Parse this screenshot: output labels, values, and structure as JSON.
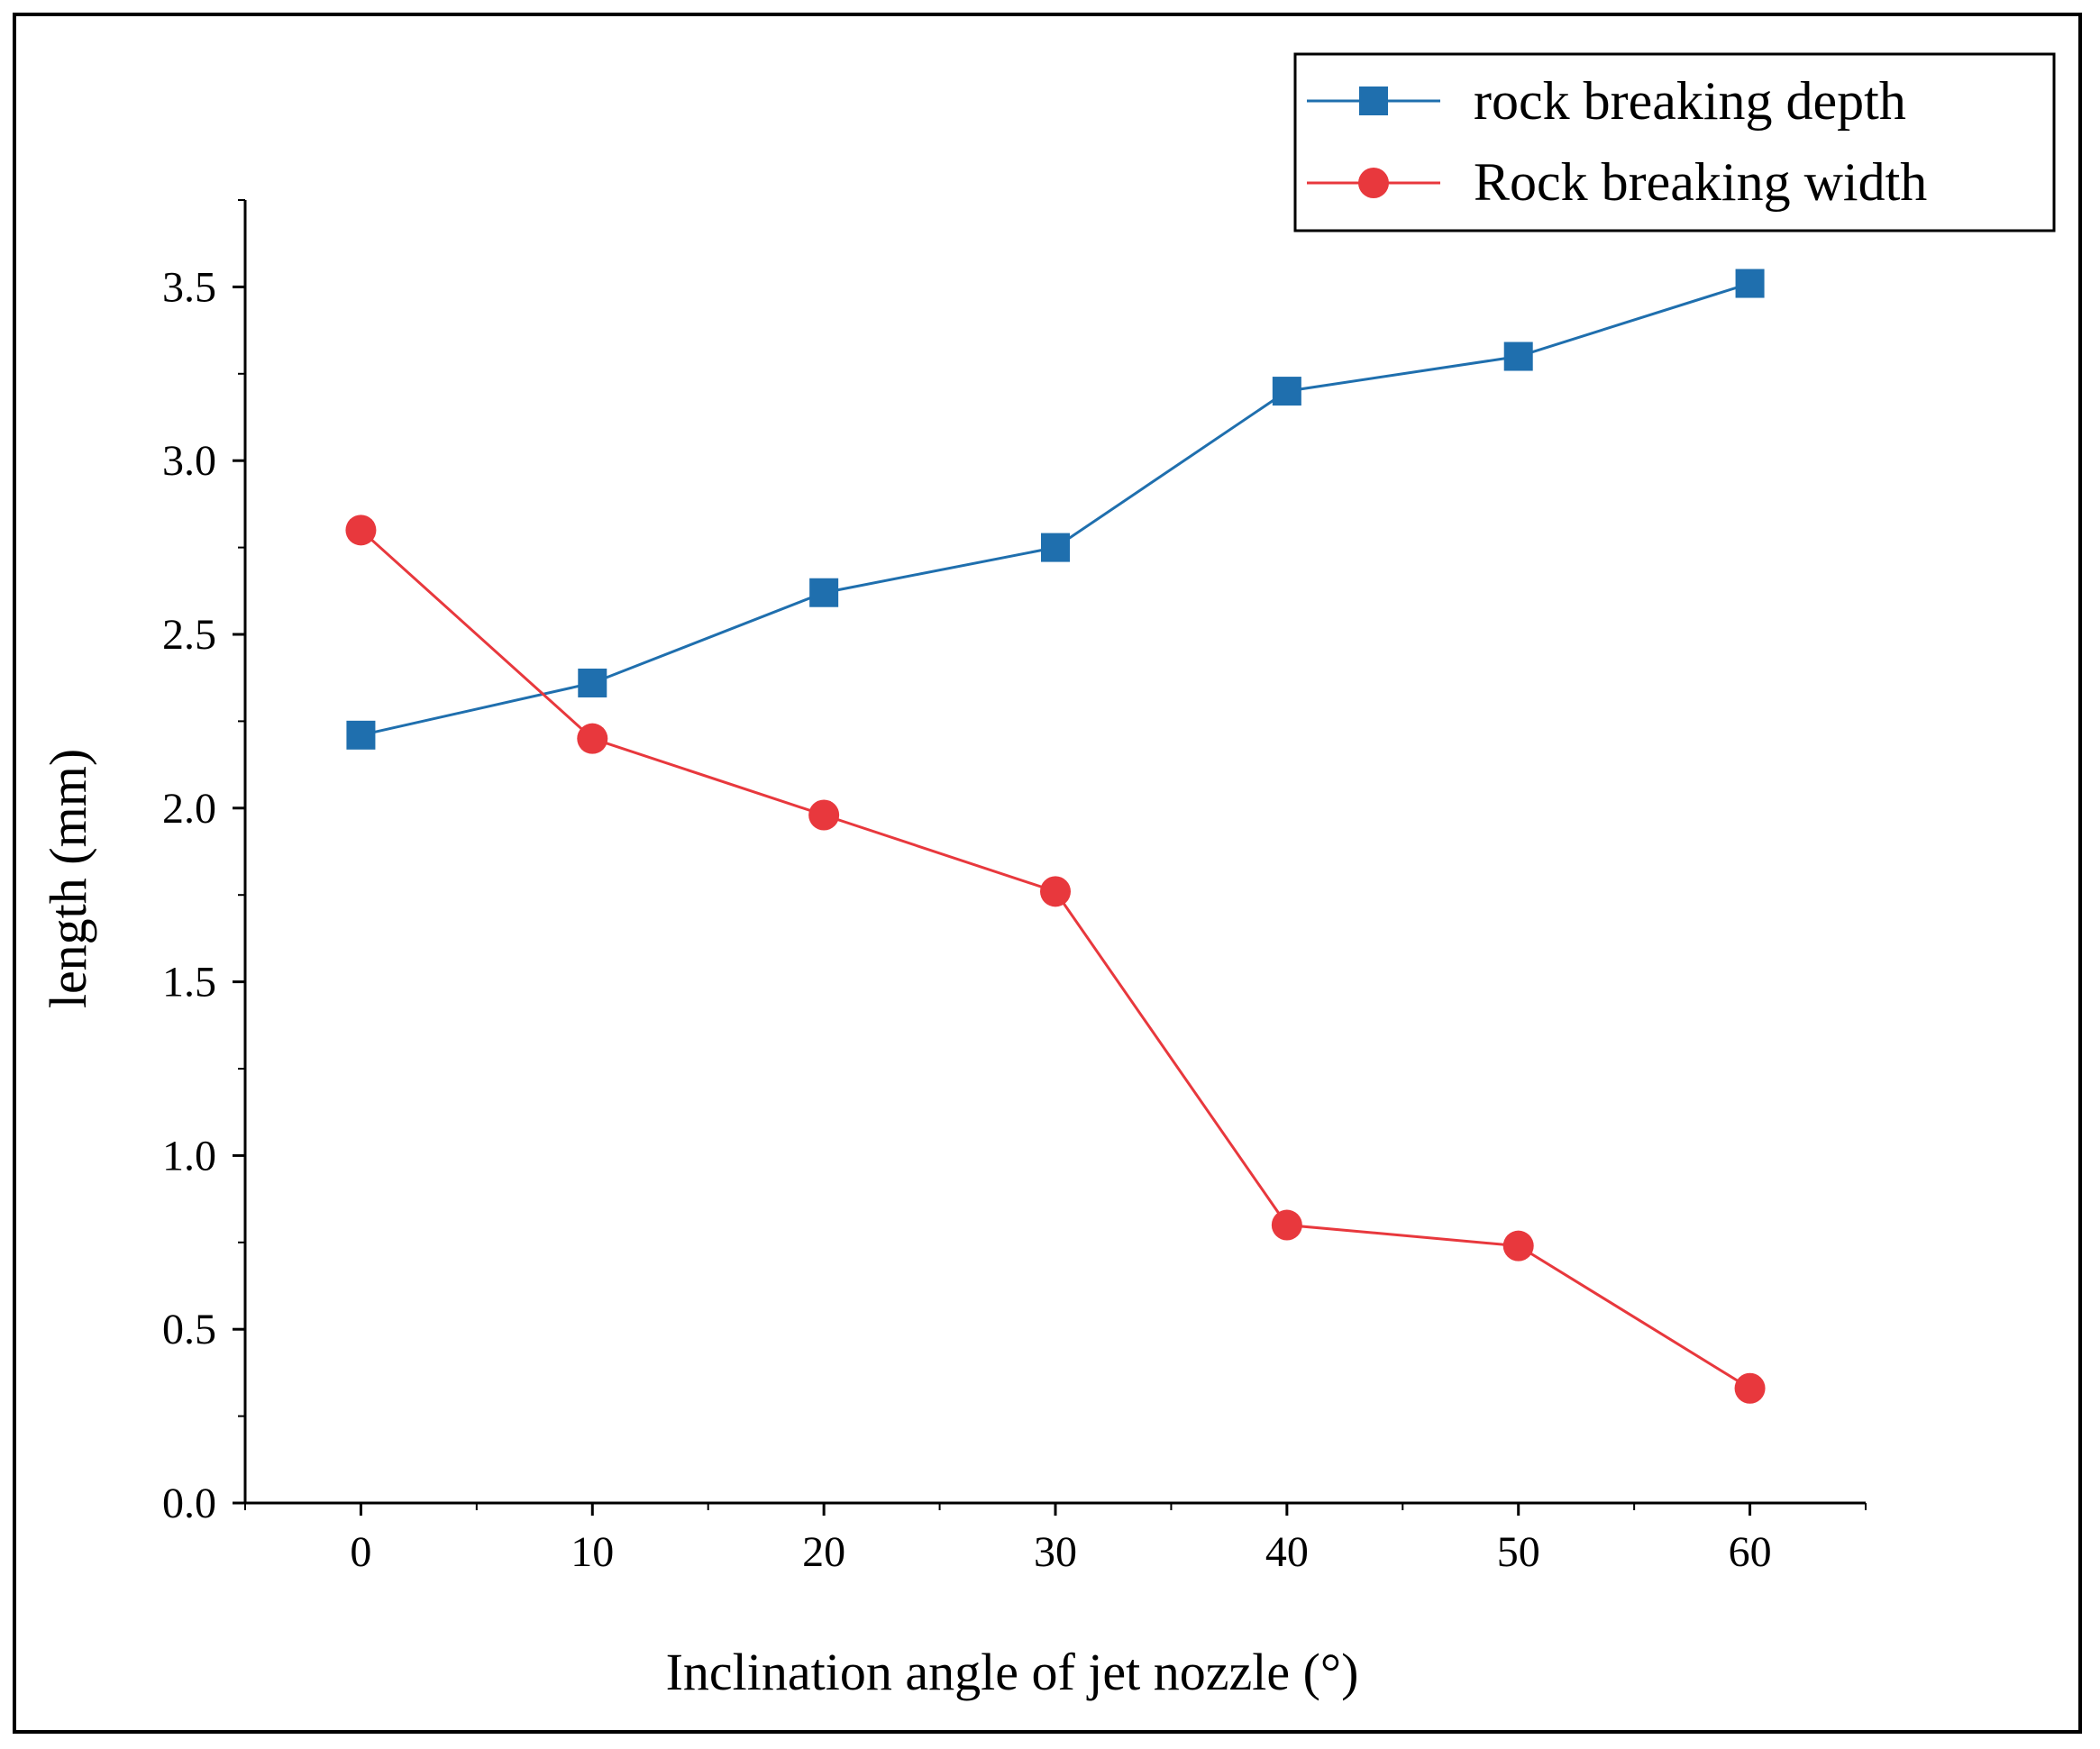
{
  "chart_data": {
    "type": "line",
    "title": "",
    "xlabel": "Inclination angle of jet nozzle  (°)",
    "ylabel": "length (mm)",
    "x": [
      0,
      10,
      20,
      30,
      40,
      50,
      60
    ],
    "xlim": [
      -5,
      65
    ],
    "ylim": [
      0,
      3.75
    ],
    "xticks": [
      0,
      10,
      20,
      30,
      40,
      50,
      60
    ],
    "xtick_labels": [
      "0",
      "10",
      "20",
      "30",
      "40",
      "50",
      "60"
    ],
    "yticks": [
      0,
      0.5,
      1.0,
      1.5,
      2.0,
      2.5,
      3.0,
      3.5
    ],
    "ytick_labels": [
      "0.0",
      "0.5",
      "1.0",
      "1.5",
      "2.0",
      "2.5",
      "3.0",
      "3.5"
    ],
    "grid": false,
    "legend_position": "top-right",
    "series": [
      {
        "name": "rock breaking depth",
        "marker": "square",
        "color": "#1f6fae",
        "values": [
          2.21,
          2.36,
          2.62,
          2.75,
          3.2,
          3.3,
          3.51
        ]
      },
      {
        "name": "Rock breaking width",
        "marker": "circle",
        "color": "#e8383d",
        "values": [
          2.8,
          2.2,
          1.98,
          1.76,
          0.8,
          0.74,
          0.33
        ]
      }
    ]
  }
}
